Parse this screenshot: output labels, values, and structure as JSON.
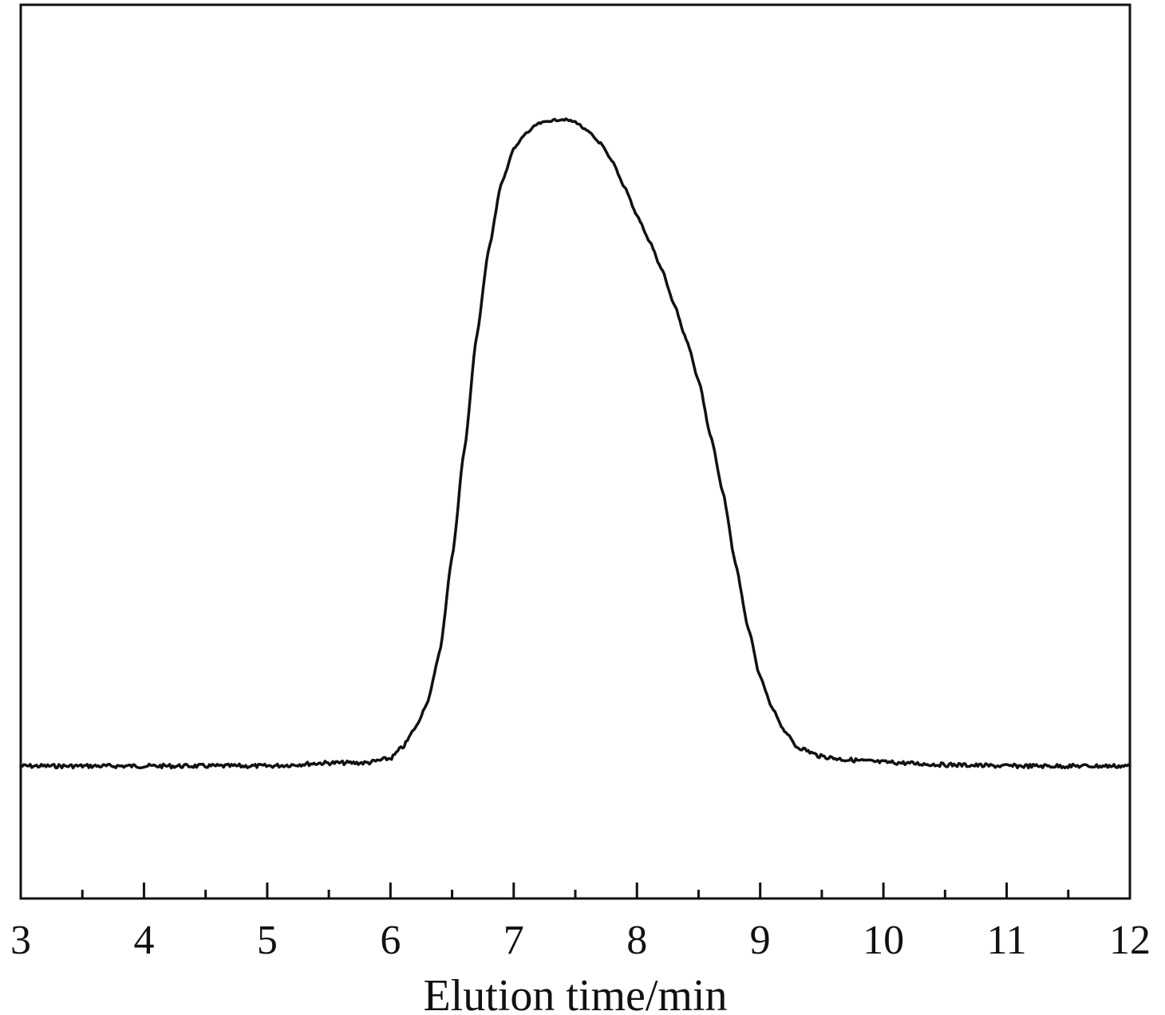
{
  "chart_data": {
    "type": "line",
    "title": "",
    "xlabel": "Elution time/min",
    "ylabel": "",
    "xlim": [
      3,
      12
    ],
    "ylim": [
      0,
      1
    ],
    "major_ticks": [
      3,
      4,
      5,
      6,
      7,
      8,
      9,
      10,
      11,
      12
    ],
    "tick_labels": [
      "3",
      "4",
      "5",
      "6",
      "7",
      "8",
      "9",
      "10",
      "11",
      "12"
    ],
    "minor_ticks": [
      3.5,
      4.5,
      5.5,
      6.5,
      7.5,
      8.5,
      9.5,
      10.5,
      11.5
    ],
    "grid": false,
    "legend": "none",
    "line_color": "#111111",
    "series": [
      {
        "x": [
          3.0,
          3.5,
          4.0,
          4.5,
          5.0,
          5.5,
          5.8,
          6.0,
          6.1,
          6.2,
          6.3,
          6.4,
          6.5,
          6.6,
          6.7,
          6.8,
          6.9,
          7.0,
          7.1,
          7.2,
          7.3,
          7.4,
          7.5,
          7.6,
          7.7,
          7.8,
          7.9,
          8.0,
          8.1,
          8.2,
          8.3,
          8.4,
          8.5,
          8.6,
          8.7,
          8.8,
          8.9,
          9.0,
          9.1,
          9.2,
          9.3,
          9.5,
          9.7,
          10.0,
          10.5,
          11.0,
          11.5,
          12.0
        ],
        "y": [
          0.0,
          0.0,
          0.0,
          0.0,
          0.0,
          0.005,
          0.005,
          0.012,
          0.03,
          0.06,
          0.1,
          0.18,
          0.33,
          0.5,
          0.68,
          0.82,
          0.92,
          0.975,
          1.0,
          1.015,
          1.02,
          1.022,
          1.018,
          1.003,
          0.985,
          0.955,
          0.915,
          0.87,
          0.83,
          0.785,
          0.73,
          0.675,
          0.61,
          0.52,
          0.43,
          0.32,
          0.22,
          0.14,
          0.09,
          0.055,
          0.03,
          0.015,
          0.01,
          0.006,
          0.002,
          0.0,
          0.0,
          0.0
        ]
      }
    ]
  }
}
